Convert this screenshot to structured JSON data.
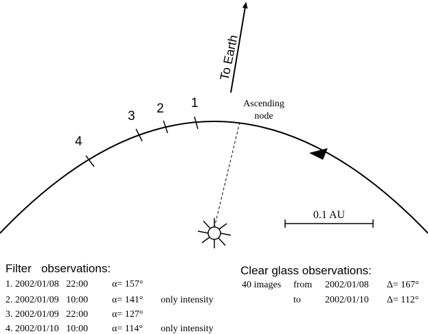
{
  "diagram": {
    "to_earth": "To Earth",
    "ascending_node": [
      "Ascending",
      "node"
    ],
    "tick_labels": [
      "1",
      "2",
      "3",
      "4"
    ],
    "scale_label": "0.1 AU"
  },
  "filter": {
    "title": "Filter   observations:",
    "rows": [
      {
        "entry": "1. 2002/01/08   22:00",
        "alpha": "α= 157°"
      },
      {
        "entry": "2. 2002/01/09   10:00",
        "alpha": "α= 141°",
        "note": "only intensity"
      },
      {
        "entry": "3. 2002/01/09   22:00",
        "alpha": "α= 127°"
      },
      {
        "entry": "4. 2002/01/10   10:00",
        "alpha": "α= 114°",
        "note": "only intensity"
      }
    ]
  },
  "clear_glass": {
    "title": "Clear glass observations:",
    "rows": [
      {
        "count": "40 images",
        "word": "from",
        "date": "2002/01/08",
        "delta": "Δ= 167°"
      },
      {
        "word": "to",
        "date": "2002/01/10",
        "delta": "Δ= 112°"
      }
    ]
  }
}
